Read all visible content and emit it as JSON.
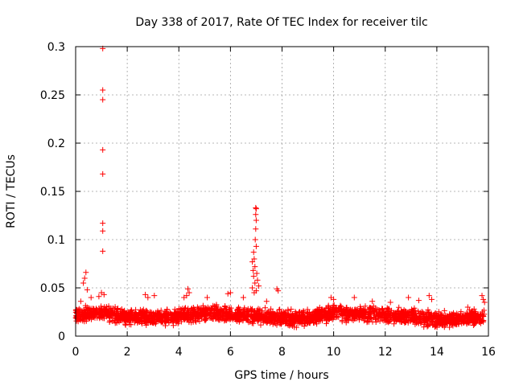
{
  "chart_data": {
    "type": "scatter",
    "title": "Day 338 of 2017, Rate Of TEC Index for receiver tilc",
    "xlabel": "GPS time / hours",
    "ylabel": "ROTI / TECUs",
    "xlim": [
      0,
      16
    ],
    "ylim": [
      0,
      0.3
    ],
    "xticks": [
      0,
      2,
      4,
      6,
      8,
      10,
      12,
      14,
      16
    ],
    "yticks": [
      0,
      0.05,
      0.1,
      0.15,
      0.2,
      0.25,
      0.3
    ],
    "xtick_labels": [
      "0",
      "2",
      "4",
      "6",
      "8",
      "10",
      "12",
      "14",
      "16"
    ],
    "ytick_labels": [
      "0",
      "0.05",
      "0.1",
      "0.15",
      "0.2",
      "0.25",
      "0.3"
    ],
    "grid": true,
    "marker": "plus",
    "marker_color": "#ff0000",
    "data_extent_hours": [
      0,
      15.85
    ],
    "baseline_band": [
      {
        "x": 0.0,
        "y": 0.022
      },
      {
        "x": 1.0,
        "y": 0.024
      },
      {
        "x": 2.0,
        "y": 0.02
      },
      {
        "x": 3.0,
        "y": 0.019
      },
      {
        "x": 4.0,
        "y": 0.02
      },
      {
        "x": 5.0,
        "y": 0.024
      },
      {
        "x": 6.0,
        "y": 0.022
      },
      {
        "x": 7.0,
        "y": 0.021
      },
      {
        "x": 8.0,
        "y": 0.018
      },
      {
        "x": 9.0,
        "y": 0.019
      },
      {
        "x": 10.0,
        "y": 0.024
      },
      {
        "x": 11.0,
        "y": 0.023
      },
      {
        "x": 12.0,
        "y": 0.022
      },
      {
        "x": 13.0,
        "y": 0.021
      },
      {
        "x": 14.0,
        "y": 0.017
      },
      {
        "x": 15.0,
        "y": 0.018
      },
      {
        "x": 15.85,
        "y": 0.02
      }
    ],
    "points": [
      {
        "x": 1.05,
        "y": 0.298
      },
      {
        "x": 1.05,
        "y": 0.255
      },
      {
        "x": 1.05,
        "y": 0.245
      },
      {
        "x": 1.05,
        "y": 0.193
      },
      {
        "x": 1.05,
        "y": 0.168
      },
      {
        "x": 1.05,
        "y": 0.117
      },
      {
        "x": 1.05,
        "y": 0.109
      },
      {
        "x": 1.05,
        "y": 0.088
      },
      {
        "x": 0.4,
        "y": 0.066
      },
      {
        "x": 0.35,
        "y": 0.06
      },
      {
        "x": 0.3,
        "y": 0.055
      },
      {
        "x": 0.45,
        "y": 0.048
      },
      {
        "x": 1.0,
        "y": 0.045
      },
      {
        "x": 1.1,
        "y": 0.043
      },
      {
        "x": 0.9,
        "y": 0.041
      },
      {
        "x": 0.6,
        "y": 0.04
      },
      {
        "x": 0.2,
        "y": 0.036
      },
      {
        "x": 2.7,
        "y": 0.043
      },
      {
        "x": 2.8,
        "y": 0.04
      },
      {
        "x": 3.05,
        "y": 0.042
      },
      {
        "x": 4.2,
        "y": 0.04
      },
      {
        "x": 4.35,
        "y": 0.049
      },
      {
        "x": 4.4,
        "y": 0.045
      },
      {
        "x": 4.3,
        "y": 0.042
      },
      {
        "x": 5.1,
        "y": 0.04
      },
      {
        "x": 5.9,
        "y": 0.044
      },
      {
        "x": 6.0,
        "y": 0.045
      },
      {
        "x": 6.5,
        "y": 0.04
      },
      {
        "x": 6.98,
        "y": 0.133
      },
      {
        "x": 7.0,
        "y": 0.132
      },
      {
        "x": 6.98,
        "y": 0.126
      },
      {
        "x": 7.0,
        "y": 0.12
      },
      {
        "x": 6.98,
        "y": 0.111
      },
      {
        "x": 6.96,
        "y": 0.1
      },
      {
        "x": 7.0,
        "y": 0.093
      },
      {
        "x": 6.9,
        "y": 0.087
      },
      {
        "x": 6.92,
        "y": 0.08
      },
      {
        "x": 6.85,
        "y": 0.077
      },
      {
        "x": 6.95,
        "y": 0.072
      },
      {
        "x": 6.88,
        "y": 0.068
      },
      {
        "x": 7.02,
        "y": 0.065
      },
      {
        "x": 6.9,
        "y": 0.062
      },
      {
        "x": 7.05,
        "y": 0.058
      },
      {
        "x": 6.95,
        "y": 0.055
      },
      {
        "x": 7.1,
        "y": 0.052
      },
      {
        "x": 6.85,
        "y": 0.05
      },
      {
        "x": 7.0,
        "y": 0.047
      },
      {
        "x": 6.92,
        "y": 0.045
      },
      {
        "x": 7.4,
        "y": 0.036
      },
      {
        "x": 7.8,
        "y": 0.049
      },
      {
        "x": 7.85,
        "y": 0.047
      },
      {
        "x": 9.9,
        "y": 0.04
      },
      {
        "x": 10.0,
        "y": 0.038
      },
      {
        "x": 10.8,
        "y": 0.04
      },
      {
        "x": 11.5,
        "y": 0.036
      },
      {
        "x": 12.2,
        "y": 0.035
      },
      {
        "x": 12.9,
        "y": 0.04
      },
      {
        "x": 13.3,
        "y": 0.037
      },
      {
        "x": 13.7,
        "y": 0.042
      },
      {
        "x": 13.8,
        "y": 0.038
      },
      {
        "x": 15.2,
        "y": 0.03
      },
      {
        "x": 15.75,
        "y": 0.042
      },
      {
        "x": 15.8,
        "y": 0.038
      },
      {
        "x": 15.85,
        "y": 0.035
      }
    ]
  }
}
